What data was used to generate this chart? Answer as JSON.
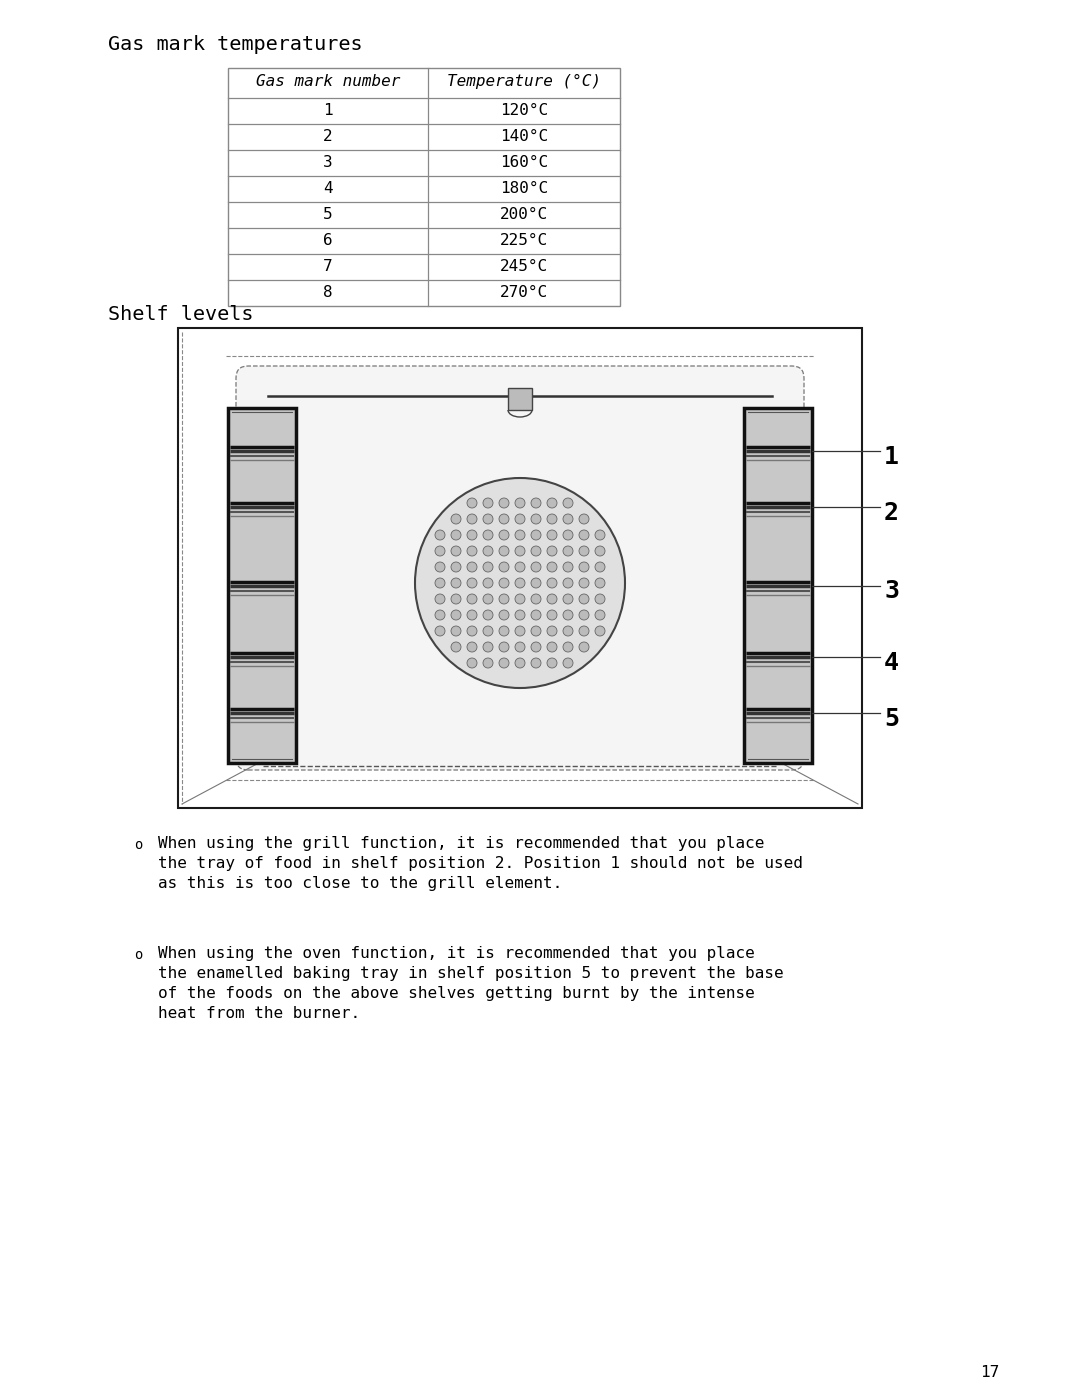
{
  "title_gas": "Gas mark temperatures",
  "title_shelf": "Shelf levels",
  "table_col1_header": "Gas mark number",
  "table_col2_header": "Temperature (°C)",
  "table_rows": [
    [
      "1",
      "120°C"
    ],
    [
      "2",
      "140°C"
    ],
    [
      "3",
      "160°C"
    ],
    [
      "4",
      "180°C"
    ],
    [
      "5",
      "200°C"
    ],
    [
      "6",
      "225°C"
    ],
    [
      "7",
      "245°C"
    ],
    [
      "8",
      "270°C"
    ]
  ],
  "bullet1_line1": "When using the grill function, it is recommended that you place",
  "bullet1_line2": "the tray of food in shelf position 2. Position 1 should not be used",
  "bullet1_line3": "as this is too close to the grill element.",
  "bullet2_line1": "When using the oven function, it is recommended that you place",
  "bullet2_line2": "the enamelled baking tray in shelf position 5 to prevent the base",
  "bullet2_line3": "of the foods on the above shelves getting burnt by the intense",
  "bullet2_line4": "heat from the burner.",
  "page_number": "17",
  "bg_color": "#ffffff",
  "text_color": "#000000",
  "gray_line": "#888888",
  "dark": "#222222"
}
